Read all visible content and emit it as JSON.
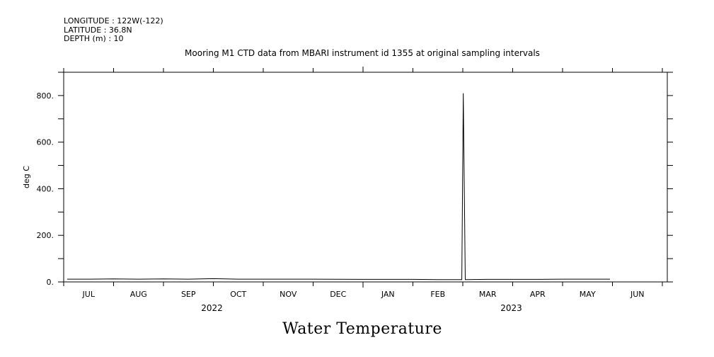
{
  "header": {
    "longitude": "LONGITUDE : 122W(-122)",
    "latitude": "LATITUDE : 36.8N",
    "depth": "DEPTH (m) : 10"
  },
  "chart_data": {
    "type": "line",
    "title": "Mooring M1 CTD data from MBARI instrument id 1355 at original sampling intervals",
    "bottom_title": "Water Temperature",
    "ylabel": "deg C",
    "xlabel": "",
    "ylim": [
      0,
      900
    ],
    "yticks": [
      0,
      200,
      400,
      600,
      800
    ],
    "ytick_labels": [
      "0.",
      "200.",
      "400.",
      "600.",
      "800."
    ],
    "month_labels": [
      "JUL",
      "AUG",
      "SEP",
      "OCT",
      "NOV",
      "DEC",
      "JAN",
      "FEB",
      "MAR",
      "APR",
      "MAY",
      "JUN"
    ],
    "year_labels": [
      {
        "label": "2022",
        "month_index": 3
      },
      {
        "label": "2023",
        "month_index": 9
      }
    ],
    "grid": false,
    "series": [
      {
        "color": "#000000",
        "x_months": [
          0.07,
          0.5,
          1.0,
          1.5,
          2.0,
          2.5,
          3.0,
          3.5,
          4.0,
          5.0,
          6.0,
          7.0,
          7.5,
          7.98,
          8.01,
          8.05,
          8.5,
          9.0,
          9.5,
          10.0,
          10.5,
          10.95
        ],
        "values": [
          12,
          12,
          13,
          12,
          13,
          12,
          14,
          12,
          12,
          12,
          11,
          11,
          10,
          10,
          810,
          10,
          11,
          11,
          11,
          12,
          12,
          12
        ]
      }
    ]
  }
}
